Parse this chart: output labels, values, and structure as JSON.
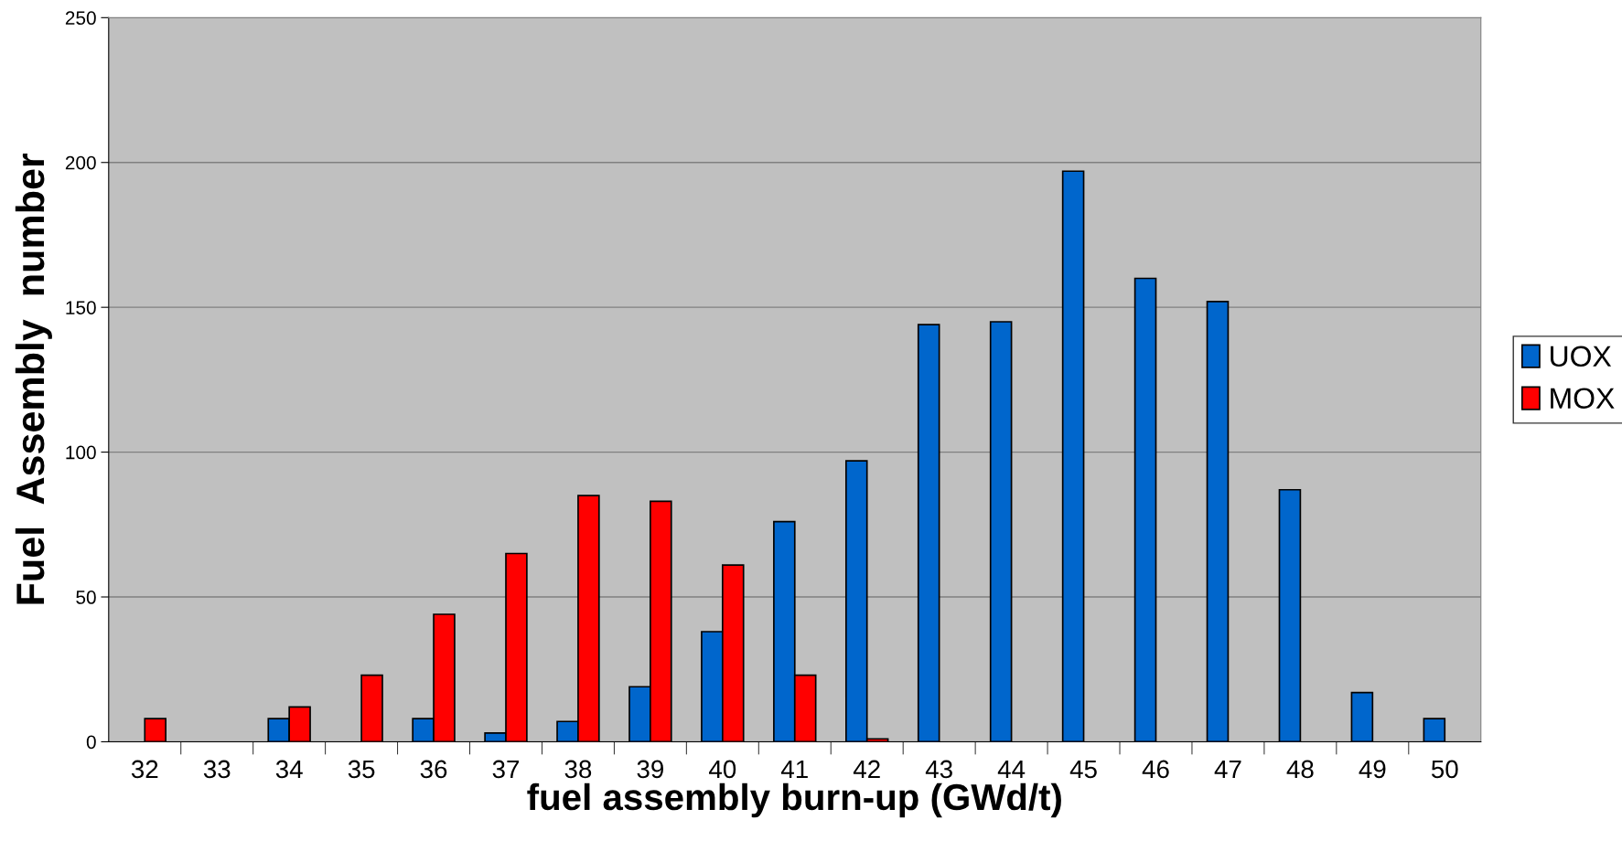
{
  "chart_data": {
    "type": "bar",
    "xlabel": "fuel assembly burn-up (GWd/t)",
    "ylabel": "Fuel  Assembly  number",
    "categories": [
      "32",
      "33",
      "34",
      "35",
      "36",
      "37",
      "38",
      "39",
      "40",
      "41",
      "42",
      "43",
      "44",
      "45",
      "46",
      "47",
      "48",
      "49",
      "50"
    ],
    "series": [
      {
        "name": "UOX",
        "color": "#0066cc",
        "values": [
          null,
          null,
          8,
          null,
          8,
          3,
          7,
          19,
          38,
          76,
          97,
          144,
          145,
          197,
          160,
          152,
          87,
          17,
          8
        ]
      },
      {
        "name": "MOX",
        "color": "#ff0000",
        "values": [
          8,
          null,
          12,
          23,
          44,
          65,
          85,
          83,
          61,
          23,
          1,
          null,
          null,
          null,
          null,
          null,
          null,
          null,
          null
        ]
      }
    ],
    "ylim": [
      0,
      250
    ],
    "yticks": [
      0,
      50,
      100,
      150,
      200,
      250
    ],
    "grid": "y",
    "legend": "right"
  }
}
